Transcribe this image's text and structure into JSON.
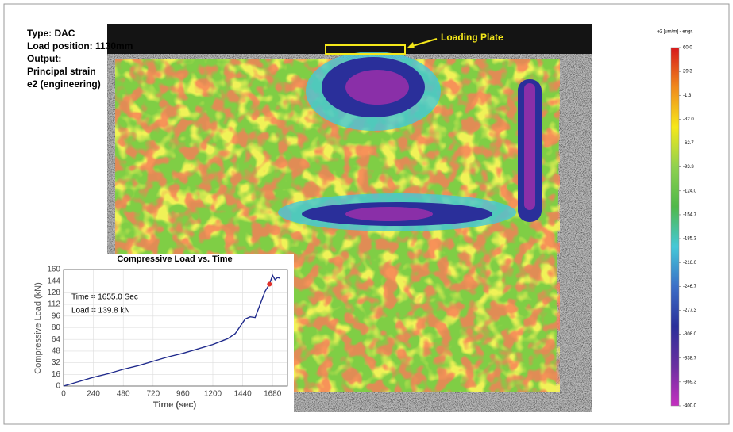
{
  "annotations": {
    "type": "Type: DAC",
    "load_position": "Load position: 1130mm",
    "output": "Output:",
    "output_name": "Principal strain",
    "output_detail": "e2 (engineering)",
    "loading_plate": "Loading Plate"
  },
  "colorbar": {
    "title": "e2 [um/m] - engr.",
    "colors": [
      "#d7191c",
      "#f08a1c",
      "#f5e81a",
      "#8fd14f",
      "#4fb84a",
      "#45c8d8",
      "#3b6fc7",
      "#2a2f9a",
      "#6a2fa0",
      "#c52fc0"
    ],
    "ticks": [
      {
        "value": 60,
        "label": "60.0"
      },
      29.3,
      -1.3,
      {
        "value": -32,
        "label": "-32.0"
      },
      -62.7,
      -93.3,
      {
        "value": -124,
        "label": "-124.0"
      },
      -154.7,
      -185.3,
      {
        "value": -216,
        "label": "-216.0"
      },
      -246.7,
      -277.3,
      {
        "value": -308,
        "label": "-308.0"
      },
      -338.7,
      -369.3,
      {
        "value": -400,
        "label": "-400.0"
      }
    ]
  },
  "chart_data": {
    "type": "line",
    "title": "Compressive Load vs. Time",
    "x_label": "Time (sec)",
    "y_label": "Compressive Load (kN)",
    "x": [
      0,
      120,
      240,
      360,
      480,
      600,
      720,
      840,
      960,
      1080,
      1200,
      1260,
      1320,
      1380,
      1420,
      1460,
      1500,
      1540,
      1580,
      1620,
      1655,
      1680,
      1700,
      1720,
      1740
    ],
    "values": [
      0,
      6,
      12,
      17,
      23,
      28,
      34,
      40,
      45,
      51,
      57,
      61,
      65,
      72,
      82,
      92,
      95,
      94,
      112,
      130,
      139.8,
      152,
      146,
      149,
      148
    ],
    "color": "#1f2a8c",
    "marker_x": 1655,
    "marker_y": 139.8,
    "marker_color": "#e0302a",
    "annotation_time": "Time = 1655.0 Sec",
    "annotation_load": "Load = 139.8 kN",
    "xlim": [
      0,
      1800
    ],
    "xticks": [
      0,
      240,
      480,
      720,
      960,
      1200,
      1440,
      1680
    ],
    "ylim": [
      0,
      160
    ],
    "yticks": [
      0,
      16,
      32,
      48,
      64,
      80,
      96,
      112,
      128,
      144,
      160
    ],
    "grid": true
  }
}
